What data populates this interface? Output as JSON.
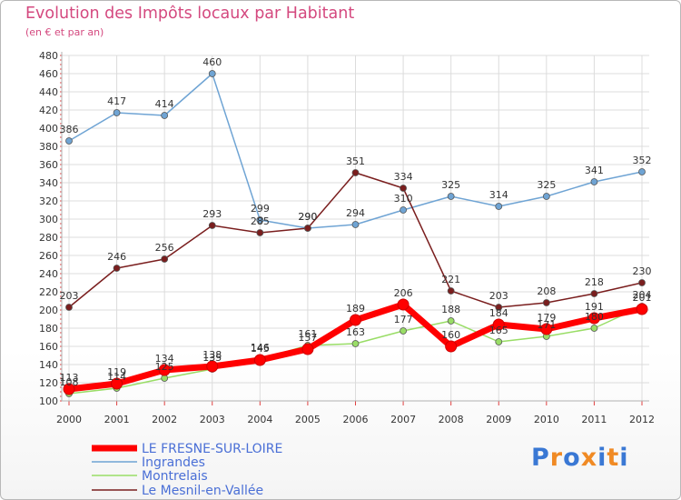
{
  "chart_data": {
    "type": "line",
    "title": "Evolution des Impôts locaux par Habitant",
    "subtitle": "(en € et par an)",
    "x": [
      "2000",
      "2001",
      "2002",
      "2003",
      "2004",
      "2005",
      "2006",
      "2007",
      "2008",
      "2009",
      "2010",
      "2011",
      "2012"
    ],
    "ylim": [
      100,
      480
    ],
    "yticks": [
      100,
      120,
      140,
      160,
      180,
      200,
      220,
      240,
      260,
      280,
      300,
      320,
      340,
      360,
      380,
      400,
      420,
      440,
      460,
      480
    ],
    "series": [
      {
        "name": "LE FRESNE-SUR-LOIRE",
        "color": "#ff0000",
        "values": [
          113,
          119,
          134,
          138,
          145,
          157,
          189,
          206,
          160,
          184,
          179,
          191,
          201
        ]
      },
      {
        "name": "Ingrandes",
        "color": "#6fa4d4",
        "values": [
          386,
          417,
          414,
          460,
          299,
          290,
          294,
          310,
          325,
          314,
          325,
          341,
          352
        ]
      },
      {
        "name": "Montrelais",
        "color": "#99dd66",
        "values": [
          108,
          114,
          125,
          135,
          146,
          161,
          163,
          177,
          188,
          165,
          171,
          180,
          204
        ]
      },
      {
        "name": "Le Mesnil-en-Vallée",
        "color": "#7a1e1e",
        "values": [
          203,
          246,
          256,
          293,
          285,
          290,
          351,
          334,
          221,
          203,
          208,
          218,
          230
        ]
      }
    ]
  },
  "branding": {
    "logo": "Proxiti"
  }
}
